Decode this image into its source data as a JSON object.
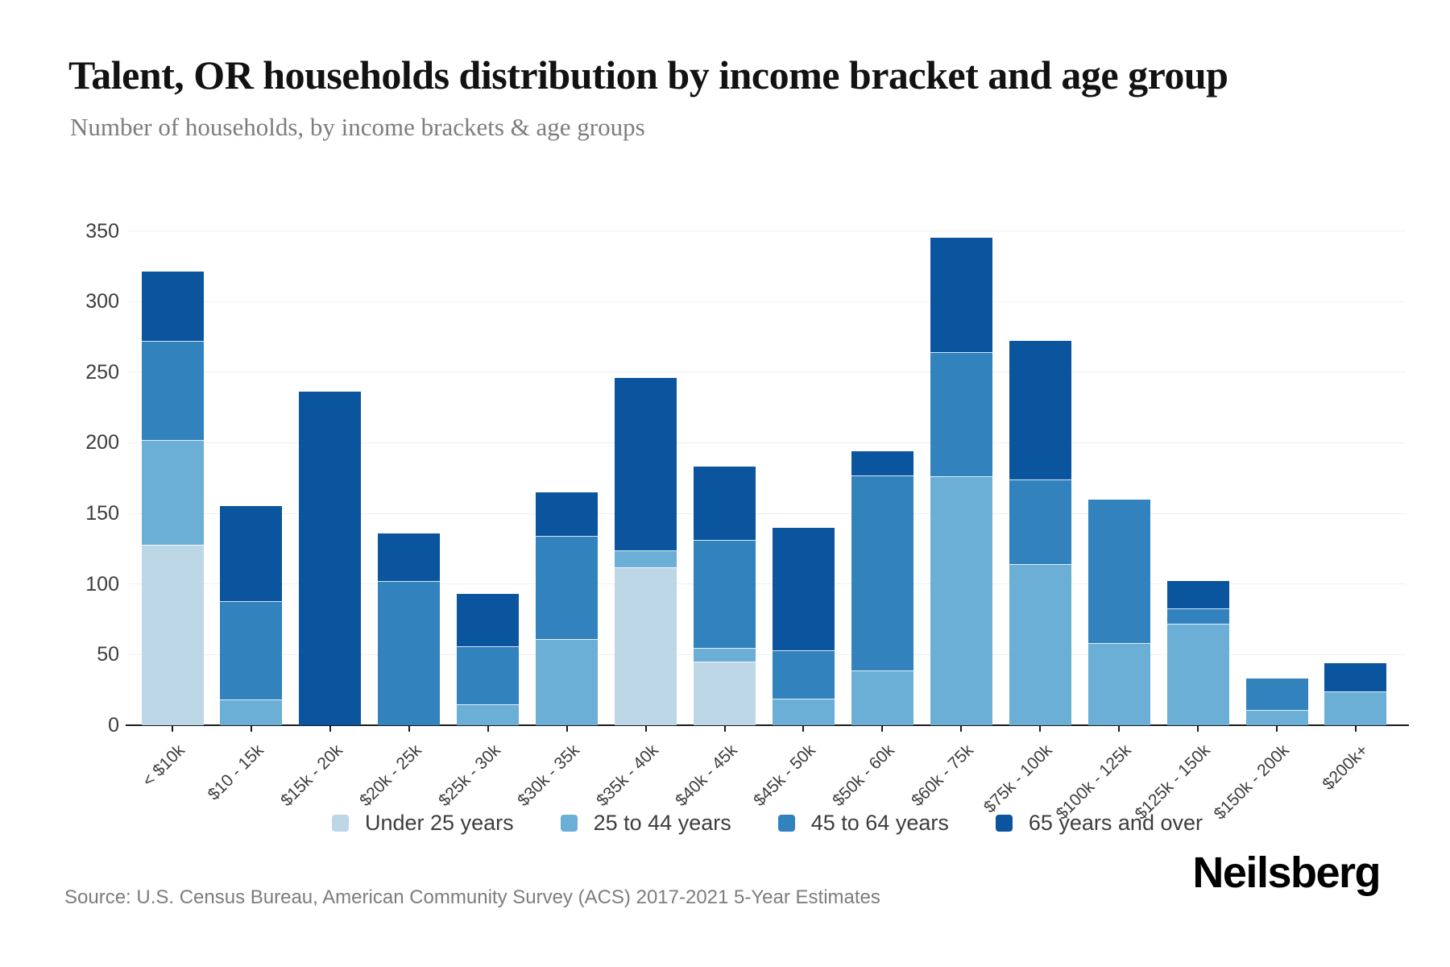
{
  "header": {
    "title": "Talent, OR households distribution by income bracket and age group",
    "subtitle": "Number of households, by income brackets & age groups"
  },
  "chart_data": {
    "type": "bar",
    "stacked": true,
    "title": "Talent, OR households distribution by income bracket and age group",
    "subtitle": "Number of households, by income brackets & age groups",
    "xlabel": "",
    "ylabel": "",
    "ylim": [
      0,
      350
    ],
    "yticks": [
      0,
      50,
      100,
      150,
      200,
      250,
      300,
      350
    ],
    "grid": true,
    "legend_position": "bottom",
    "categories": [
      "< $10k",
      "$10 - 15k",
      "$15k - 20k",
      "$20k - 25k",
      "$25k - 30k",
      "$30k - 35k",
      "$35k - 40k",
      "$40k - 45k",
      "$45k - 50k",
      "$50k - 60k",
      "$60k - 75k",
      "$75k - 100k",
      "$100k - 125k",
      "$125k - 150k",
      "$150k - 200k",
      "$200k+"
    ],
    "series": [
      {
        "name": "Under 25 years",
        "color": "#bdd7e7",
        "values": [
          128,
          0,
          0,
          0,
          0,
          0,
          112,
          45,
          0,
          0,
          0,
          0,
          0,
          0,
          0,
          0
        ]
      },
      {
        "name": "25 to 44 years",
        "color": "#6baed6",
        "values": [
          74,
          18,
          0,
          0,
          15,
          61,
          12,
          10,
          19,
          39,
          176,
          114,
          58,
          72,
          11,
          24
        ]
      },
      {
        "name": "45 to 64 years",
        "color": "#3182bd",
        "values": [
          70,
          70,
          0,
          102,
          41,
          73,
          0,
          76,
          34,
          138,
          88,
          60,
          102,
          11,
          22,
          0
        ]
      },
      {
        "name": "65 years and over",
        "color": "#0b549e",
        "values": [
          49,
          67,
          236,
          34,
          37,
          31,
          122,
          52,
          87,
          17,
          81,
          98,
          0,
          19,
          0,
          20
        ]
      }
    ],
    "totals": [
      321,
      155,
      236,
      136,
      93,
      165,
      246,
      183,
      140,
      194,
      345,
      272,
      160,
      102,
      33,
      44
    ]
  },
  "footer": {
    "source": "Source: U.S. Census Bureau, American Community Survey (ACS) 2017-2021 5-Year Estimates",
    "brand": "Neilsberg"
  }
}
